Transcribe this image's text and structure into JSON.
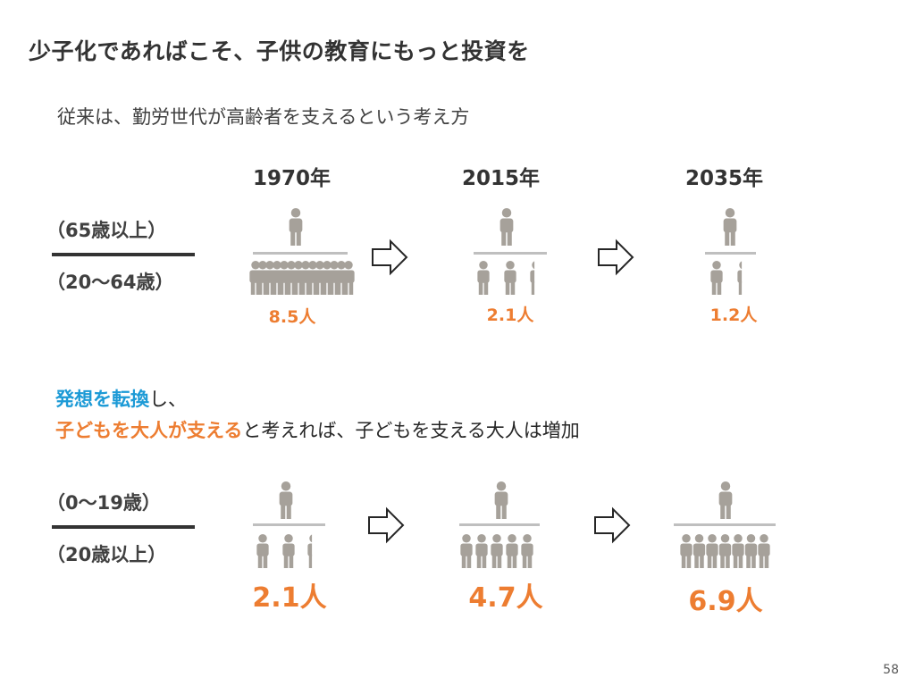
{
  "slide": {
    "title": "少子化であればこそ、子供の教育にもっと投資を",
    "subtitle": "従来は、勤労世代が高齢者を支えるという考え方",
    "page_number": "58"
  },
  "years": [
    "1970年",
    "2015年",
    "2035年"
  ],
  "section1": {
    "upper_label": "（65歳以上）",
    "lower_label": "（20～64歳）",
    "values": [
      "8.5人",
      "2.1人",
      "1.2人"
    ]
  },
  "message": {
    "line1_blue": "発想を転換",
    "line1_rest": "し、",
    "line2_orange": "子どもを大人が支える",
    "line2_rest": "と考えれば、子どもを支える大人は増加"
  },
  "section2": {
    "upper_label": "（0～19歳）",
    "lower_label": "（20歳以上）",
    "values": [
      "2.1人",
      "4.7人",
      "6.9人"
    ]
  },
  "colors": {
    "figure": "#A6A19A",
    "accent_orange": "#ED7D31",
    "accent_blue": "#1C9AD6",
    "divider": "#BFBFBF",
    "arrow_stroke": "#262626"
  },
  "icons": [
    "person-icon",
    "right-arrow-icon"
  ]
}
